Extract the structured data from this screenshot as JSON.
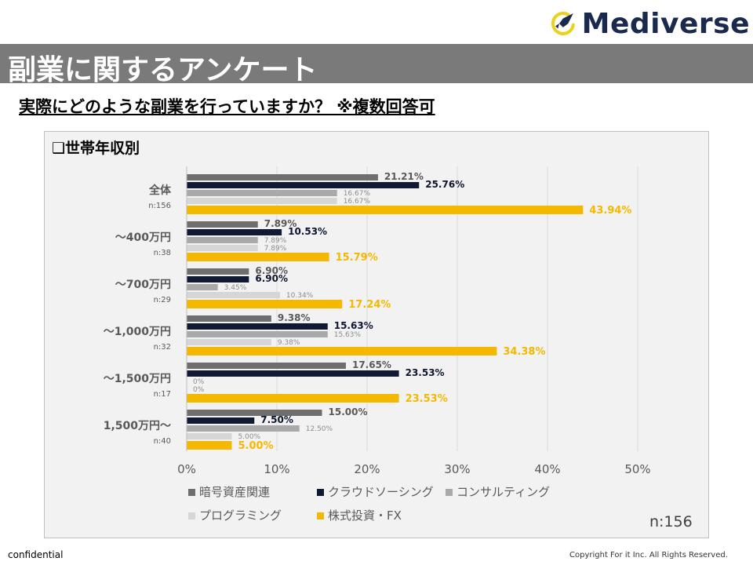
{
  "logo": {
    "text": "Mediverse"
  },
  "header": {
    "title": "副業に関するアンケート",
    "subtitle": "実際にどのような副業を行っていますか？ ※複数回答可"
  },
  "panel": {
    "title": "❑世帯年収別",
    "n_total": "n:156"
  },
  "footer": {
    "left": "confidential",
    "right": "Copyright For it Inc. All Rights Reserved."
  },
  "colors": {
    "title_bar": "#7a7a7a",
    "panel_bg": "#f2f2f2"
  },
  "chart_data": {
    "type": "bar",
    "orientation": "horizontal",
    "categories": [
      "全体",
      "～400万円",
      "～700万円",
      "～1,000万円",
      "～1,500万円",
      "1,500万円～"
    ],
    "category_n": [
      "n:156",
      "n:38",
      "n:29",
      "n:32",
      "n:17",
      "n:40"
    ],
    "series": [
      {
        "name": "暗号資産関連",
        "color": "#6e6e6e",
        "values": [
          21.21,
          7.89,
          6.9,
          9.38,
          17.65,
          15.0
        ],
        "labels": [
          "21.21%",
          "7.89%",
          "6.90%",
          "9.38%",
          "17.65%",
          "15.00%"
        ]
      },
      {
        "name": "クラウドソーシング",
        "color": "#101a33",
        "values": [
          25.76,
          10.53,
          6.9,
          15.63,
          23.53,
          7.5
        ],
        "labels": [
          "25.76%",
          "10.53%",
          "6.90%",
          "15.63%",
          "23.53%",
          "7.50%"
        ]
      },
      {
        "name": "コンサルティング",
        "color": "#a9a9a9",
        "values": [
          16.67,
          7.89,
          3.45,
          15.63,
          0,
          12.5
        ],
        "labels": [
          "16.67%",
          "7.89%",
          "3.45%",
          "15.63%",
          "0%",
          "12.50%"
        ]
      },
      {
        "name": "プログラミング",
        "color": "#d6d6d6",
        "values": [
          16.67,
          7.89,
          10.34,
          9.38,
          0,
          5.0
        ],
        "labels": [
          "16.67%",
          "7.89%",
          "10.34%",
          "9.38%",
          "0%",
          "5.00%"
        ]
      },
      {
        "name": "株式投資・FX",
        "color": "#f5b800",
        "values": [
          43.94,
          15.79,
          17.24,
          34.38,
          23.53,
          5.0
        ],
        "labels": [
          "43.94%",
          "15.79%",
          "17.24%",
          "34.38%",
          "23.53%",
          "5.00%"
        ]
      }
    ],
    "xlim": [
      0,
      50
    ],
    "xticks": [
      0,
      10,
      20,
      30,
      40,
      50
    ],
    "xtick_labels": [
      "0%",
      "10%",
      "20%",
      "30%",
      "40%",
      "50%"
    ],
    "legend": "bottom"
  }
}
